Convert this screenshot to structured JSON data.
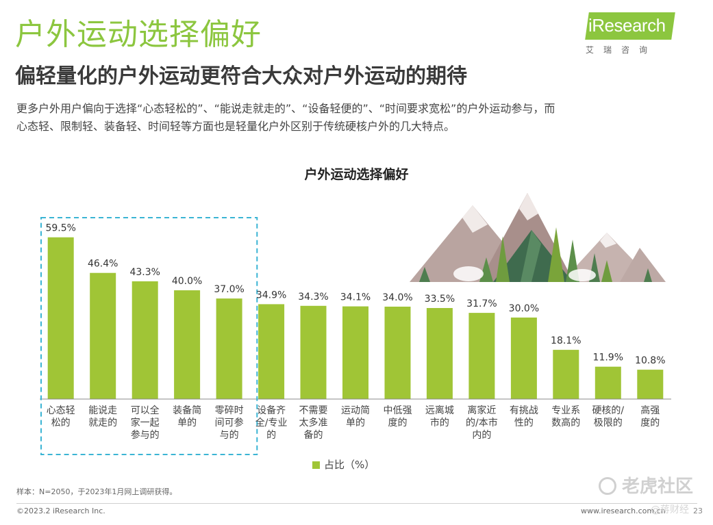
{
  "header": {
    "title": "户外运动选择偏好",
    "subtitle": "偏轻量化的户外运动更符合大众对户外运动的期待",
    "description_line1": "更多户外用户偏向于选择“心态轻松的”、“能说走就走的”、“设备轻便的”、“时间要求宽松”的户外运动参与，而",
    "description_line2": "心态轻、限制轻、装备轻、时间轻等方面也是轻量化户外区别于传统硬核户外的几大特点。"
  },
  "logo": {
    "brand": "iResearch",
    "subtext": "艾瑞咨询"
  },
  "chart_data": {
    "type": "bar",
    "title": "户外运动选择偏好",
    "categories": [
      "心态轻松的",
      "能说走就走的",
      "可以全家一起参与的",
      "装备简单的",
      "零碎时间可参与的",
      "设备齐全/专业的",
      "不需要太多准备的",
      "运动简单的",
      "中低强度的",
      "远离城市的",
      "离家近的/本市内的",
      "有挑战性的",
      "专业系数高的",
      "硬核的/极限的",
      "高强度的"
    ],
    "category_lines": [
      [
        "心态轻",
        "松的"
      ],
      [
        "能说走",
        "就走的"
      ],
      [
        "可以全",
        "家一起",
        "参与的"
      ],
      [
        "装备简",
        "单的"
      ],
      [
        "零碎时",
        "间可参",
        "与的"
      ],
      [
        "设备齐",
        "全/专业",
        "的"
      ],
      [
        "不需要",
        "太多准",
        "备的"
      ],
      [
        "运动简",
        "单的"
      ],
      [
        "中低强",
        "度的"
      ],
      [
        "远离城",
        "市的"
      ],
      [
        "离家近",
        "的/本市",
        "内的"
      ],
      [
        "有挑战",
        "性的"
      ],
      [
        "专业系",
        "数高的"
      ],
      [
        "硬核的/",
        "极限的"
      ],
      [
        "高强",
        "度的"
      ]
    ],
    "series": [
      {
        "name": "占比（%）",
        "values": [
          59.5,
          46.4,
          43.3,
          40.0,
          37.0,
          34.9,
          34.3,
          34.1,
          34.0,
          33.5,
          31.7,
          30.0,
          18.1,
          11.9,
          10.8
        ]
      }
    ],
    "value_labels": [
      "59.5%",
      "46.4%",
      "43.3%",
      "40.0%",
      "37.0%",
      "34.9%",
      "34.3%",
      "34.1%",
      "34.0%",
      "33.5%",
      "31.7%",
      "30.0%",
      "18.1%",
      "11.9%",
      "10.8%"
    ],
    "highlighted_count": 5,
    "ylim": [
      0,
      70
    ],
    "grid": false,
    "legend_position": "bottom-center",
    "colors": {
      "bar": "#a0c536",
      "highlight_box": "#3ab4d4",
      "axis": "#888888"
    }
  },
  "legend": {
    "label": "占比（%）"
  },
  "footer": {
    "note": "样本：N=2050，于2023年1月网上调研获得。",
    "copyright": "©2023.2 iResearch Inc.",
    "website": "www.iresearch.com.cn",
    "page": "23"
  },
  "watermark": {
    "text": "老虎社区",
    "secondary": "@蒋财经"
  },
  "colors": {
    "accent": "#8cc63f",
    "bar": "#a0c536",
    "title_dark": "#3a3a3a"
  }
}
